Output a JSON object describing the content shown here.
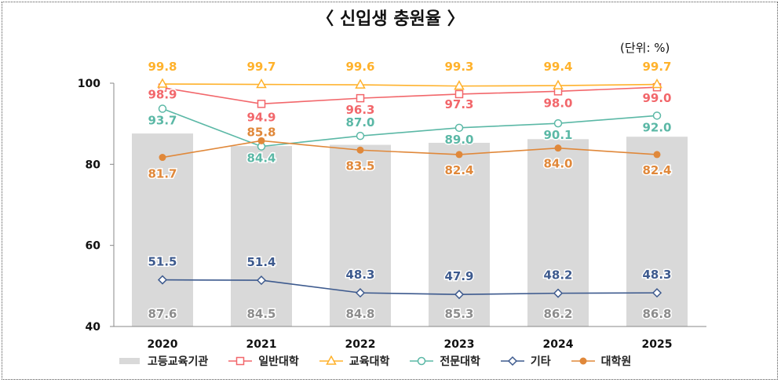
{
  "title": "〈 신입생 충원율 〉",
  "unit": "(단위: %)",
  "chart_data": {
    "type": "bar+line",
    "categories": [
      "2020",
      "2021",
      "2022",
      "2023",
      "2024",
      "2025"
    ],
    "ylim": [
      40,
      100
    ],
    "yticks": [
      40,
      60,
      80,
      100
    ],
    "grid": false,
    "legend": "bottom",
    "bars": {
      "name": "고등교육기관",
      "values": [
        87.6,
        84.5,
        84.8,
        85.3,
        86.2,
        86.8
      ],
      "color": "#d9d9d9",
      "label_color": "#8c8c8c"
    },
    "series": [
      {
        "name": "일반대학",
        "values": [
          98.9,
          94.9,
          96.3,
          97.3,
          98.0,
          99.0
        ],
        "color": "#f2676b",
        "marker": "square"
      },
      {
        "name": "교육대학",
        "values": [
          99.8,
          99.7,
          99.6,
          99.3,
          99.4,
          99.7
        ],
        "color": "#ffb22c",
        "marker": "triangle"
      },
      {
        "name": "전문대학",
        "values": [
          93.7,
          84.4,
          87.0,
          89.0,
          90.1,
          92.0
        ],
        "color": "#5bb8a6",
        "marker": "circle"
      },
      {
        "name": "기타",
        "values": [
          51.5,
          51.4,
          48.3,
          47.9,
          48.2,
          48.3
        ],
        "color": "#3d5a8e",
        "marker": "diamond"
      },
      {
        "name": "대학원",
        "values": [
          81.7,
          85.8,
          83.5,
          82.4,
          84.0,
          82.4
        ],
        "color": "#e0883a",
        "marker": "filled-circle"
      }
    ]
  }
}
